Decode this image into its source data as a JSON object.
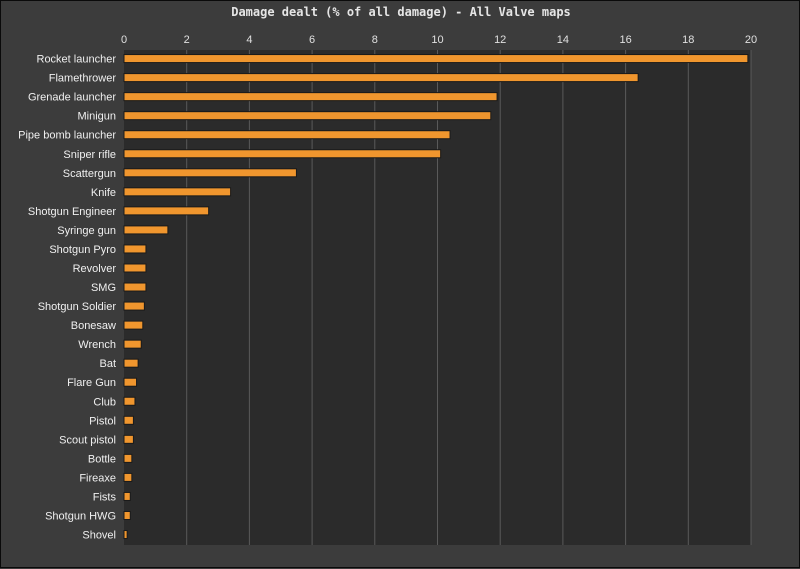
{
  "chart_data": {
    "type": "bar",
    "orientation": "horizontal",
    "title": "Damage dealt (% of all damage) - All Valve maps",
    "xlabel": "",
    "ylabel": "",
    "xlim": [
      0,
      20
    ],
    "xticks": [
      "0",
      "2",
      "4",
      "6",
      "8",
      "10",
      "12",
      "14",
      "16",
      "18",
      "20"
    ],
    "grid": "vertical",
    "legend": "none",
    "colors": {
      "bar": "#f0962e",
      "bar_edge": "#1a1a1a",
      "plot_bg": "#2b2b2b",
      "grid": "#5a5a5a",
      "background": "#3c3c3c"
    },
    "categories": [
      "Rocket launcher",
      "Flamethrower",
      "Grenade launcher",
      "Minigun",
      "Pipe bomb launcher",
      "Sniper rifle",
      "Scattergun",
      "Knife",
      "Shotgun Engineer",
      "Syringe gun",
      "Shotgun Pyro",
      "Revolver",
      "SMG",
      "Shotgun Soldier",
      "Bonesaw",
      "Wrench",
      "Bat",
      "Flare Gun",
      "Club",
      "Pistol",
      "Scout pistol",
      "Bottle",
      "Fireaxe",
      "Fists",
      "Shotgun HWG",
      "Shovel"
    ],
    "values": [
      19.9,
      16.4,
      11.9,
      11.7,
      10.4,
      10.1,
      5.5,
      3.4,
      2.7,
      1.4,
      0.7,
      0.7,
      0.7,
      0.65,
      0.6,
      0.55,
      0.45,
      0.4,
      0.35,
      0.3,
      0.3,
      0.25,
      0.25,
      0.2,
      0.2,
      0.1
    ]
  }
}
